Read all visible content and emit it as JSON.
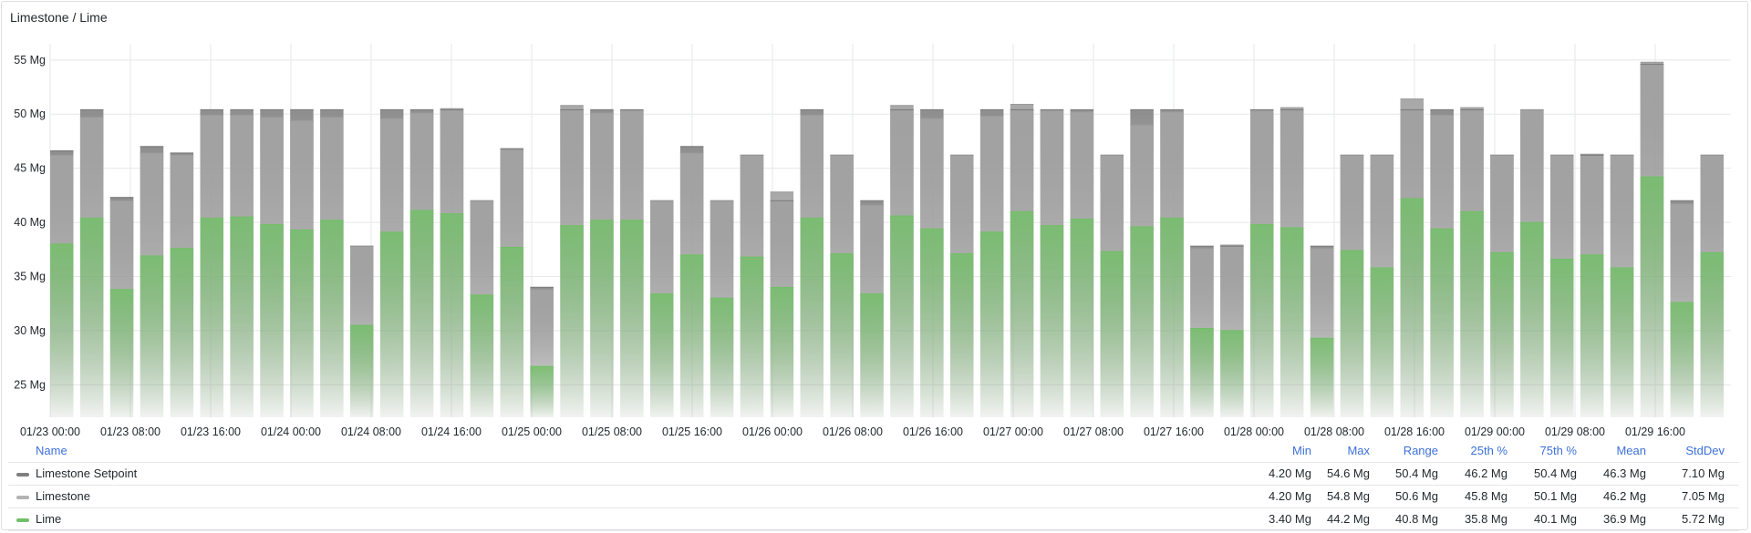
{
  "panel": {
    "title": "Limestone / Lime"
  },
  "chart_data": {
    "type": "bar",
    "unit": "Mg",
    "ylim": [
      22,
      56.5
    ],
    "yticks": [
      25,
      30,
      35,
      40,
      45,
      50,
      55
    ],
    "ytick_labels": [
      "25 Mg",
      "30 Mg",
      "35 Mg",
      "40 Mg",
      "45 Mg",
      "50 Mg",
      "55 Mg"
    ],
    "xlabels": [
      "01/23 00:00",
      "01/23 08:00",
      "01/23 16:00",
      "01/24 00:00",
      "01/24 08:00",
      "01/24 16:00",
      "01/25 00:00",
      "01/25 08:00",
      "01/25 16:00",
      "01/26 00:00",
      "01/26 08:00",
      "01/26 16:00",
      "01/27 00:00",
      "01/27 08:00",
      "01/27 16:00",
      "01/28 00:00",
      "01/28 08:00",
      "01/28 16:00",
      "01/29 00:00",
      "01/29 08:00",
      "01/29 16:00"
    ],
    "interval": "8h",
    "grid": true,
    "legend_placement": "bottom",
    "series": [
      {
        "name": "Limestone Setpoint",
        "color": "#7f7f7f",
        "values": [
          46.6,
          50.4,
          42.3,
          47.0,
          46.4,
          50.4,
          50.4,
          50.4,
          50.4,
          50.4,
          37.8,
          50.4,
          50.4,
          50.4,
          42.0,
          46.8,
          34.0,
          50.4,
          50.4,
          50.4,
          42.0,
          47.0,
          42.0,
          46.2,
          42.0,
          50.4,
          46.2,
          42.0,
          50.4,
          50.4,
          46.2,
          50.4,
          50.4,
          50.4,
          50.4,
          46.2,
          50.4,
          50.4,
          37.8,
          37.8,
          50.4,
          50.4,
          37.8,
          46.2,
          46.2,
          50.4,
          50.4,
          50.4,
          46.2,
          50.4,
          46.2,
          46.2,
          46.2,
          54.6,
          42.0,
          46.2
        ]
      },
      {
        "name": "Limestone",
        "color": "#b3b3b3",
        "values": [
          46.2,
          49.7,
          42.0,
          46.4,
          46.2,
          49.9,
          49.9,
          49.7,
          49.4,
          49.7,
          37.8,
          49.6,
          50.1,
          50.5,
          42.0,
          46.7,
          33.8,
          50.8,
          50.1,
          50.3,
          42.0,
          46.4,
          42.0,
          46.2,
          42.8,
          49.9,
          46.2,
          41.6,
          50.8,
          49.6,
          46.2,
          49.8,
          50.9,
          50.3,
          50.2,
          46.2,
          49.0,
          50.2,
          37.6,
          37.9,
          50.3,
          50.6,
          37.6,
          46.2,
          46.2,
          51.4,
          49.9,
          50.6,
          46.2,
          50.4,
          46.2,
          46.3,
          46.2,
          54.8,
          41.7,
          46.2
        ]
      },
      {
        "name": "Lime",
        "color": "#73bf69",
        "values": [
          38.0,
          40.4,
          33.8,
          36.9,
          37.6,
          40.4,
          40.5,
          39.8,
          39.3,
          40.2,
          30.5,
          39.1,
          41.1,
          40.8,
          33.3,
          37.7,
          26.7,
          39.7,
          40.2,
          40.2,
          33.4,
          37.0,
          33.0,
          36.8,
          34.0,
          40.4,
          37.1,
          33.4,
          40.6,
          39.4,
          37.1,
          39.1,
          41.0,
          39.7,
          40.3,
          37.3,
          39.6,
          40.4,
          30.2,
          30.0,
          39.8,
          39.5,
          29.3,
          37.4,
          35.8,
          42.2,
          39.4,
          41.0,
          37.2,
          40.0,
          36.6,
          37.0,
          35.8,
          44.2,
          32.6,
          37.2
        ]
      }
    ]
  },
  "legend": {
    "headers": {
      "name": "Name",
      "min": "Min",
      "max": "Max",
      "range": "Range",
      "p25": "25th %",
      "p75": "75th %",
      "mean": "Mean",
      "stddev": "StdDev"
    },
    "rows": [
      {
        "name": "Limestone Setpoint",
        "color": "#7f7f7f",
        "min": "4.20 Mg",
        "max": "54.6 Mg",
        "range": "50.4 Mg",
        "p25": "46.2 Mg",
        "p75": "50.4 Mg",
        "mean": "46.3 Mg",
        "stddev": "7.10 Mg"
      },
      {
        "name": "Limestone",
        "color": "#b3b3b3",
        "min": "4.20 Mg",
        "max": "54.8 Mg",
        "range": "50.6 Mg",
        "p25": "45.8 Mg",
        "p75": "50.1 Mg",
        "mean": "46.2 Mg",
        "stddev": "7.05 Mg"
      },
      {
        "name": "Lime",
        "color": "#73bf69",
        "min": "3.40 Mg",
        "max": "44.2 Mg",
        "range": "40.8 Mg",
        "p25": "35.8 Mg",
        "p75": "40.1 Mg",
        "mean": "36.9 Mg",
        "stddev": "5.72 Mg"
      }
    ]
  }
}
